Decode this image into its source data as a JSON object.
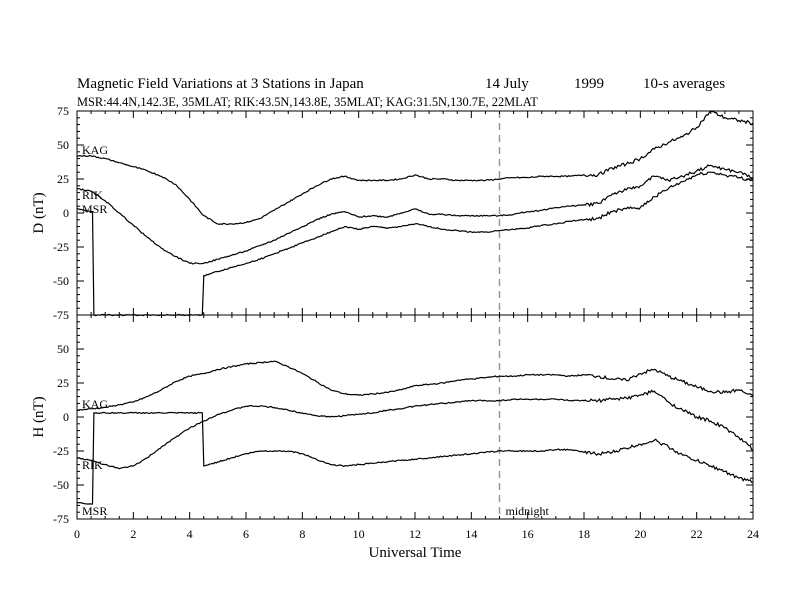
{
  "title": {
    "text": "Magnetic Field Variations at 3 Stations in Japan",
    "date_day": "14 July",
    "date_year": "1999",
    "averaging": "10-s averages"
  },
  "subtitle": "MSR:44.4N,142.3E, 35MLAT;  RIK:43.5N,143.8E, 35MLAT;  KAG:31.5N,130.7E, 22MLAT",
  "chart_data": [
    {
      "type": "line",
      "panel": "D",
      "ylabel": "D (nT)",
      "ylim": [
        -75,
        75
      ],
      "yticks": [
        -75,
        -50,
        -25,
        0,
        25,
        50,
        75
      ],
      "xlim": [
        0,
        24
      ],
      "xticks": [
        0,
        2,
        4,
        6,
        8,
        10,
        12,
        14,
        16,
        18,
        20,
        22,
        24
      ],
      "grid": false,
      "series": [
        {
          "name": "KAG",
          "x": [
            0,
            0.5,
            1,
            1.5,
            2,
            2.5,
            3,
            3.5,
            4,
            4.5,
            5,
            5.5,
            6,
            6.5,
            7,
            7.5,
            8,
            8.5,
            9,
            9.5,
            10,
            10.5,
            11,
            11.5,
            12,
            12.5,
            13,
            13.5,
            14,
            14.5,
            15,
            15.5,
            16,
            16.5,
            17,
            17.5,
            18,
            18.5,
            19,
            19.5,
            20,
            20.5,
            21,
            21.5,
            22,
            22.5,
            23,
            23.5,
            24
          ],
          "y": [
            42,
            42,
            40,
            37,
            34,
            31,
            27,
            21,
            10,
            -2,
            -8,
            -8,
            -7,
            -4,
            2,
            8,
            14,
            20,
            25,
            27,
            24,
            24,
            24,
            25,
            28,
            25,
            25,
            24,
            24,
            24,
            25,
            26,
            26,
            27,
            27,
            27,
            28,
            28,
            33,
            36,
            40,
            47,
            52,
            56,
            63,
            75,
            70,
            68,
            66
          ]
        },
        {
          "name": "RIK",
          "x": [
            0,
            0.5,
            1,
            1.5,
            2,
            2.5,
            3,
            3.5,
            4,
            4.5,
            5,
            5.5,
            6,
            6.5,
            7,
            7.5,
            8,
            8.5,
            9,
            9.5,
            10,
            10.5,
            11,
            11.5,
            12,
            12.5,
            13,
            13.5,
            14,
            14.5,
            15,
            15.5,
            16,
            16.5,
            17,
            17.5,
            18,
            18.5,
            19,
            19.5,
            20,
            20.5,
            21,
            21.5,
            22,
            22.5,
            23,
            23.5,
            24
          ],
          "y": [
            18,
            16,
            9,
            0,
            -9,
            -18,
            -26,
            -32,
            -37,
            -37,
            -34,
            -31,
            -28,
            -24,
            -20,
            -15,
            -10,
            -5,
            -1,
            1,
            -3,
            -2,
            -3,
            0,
            3,
            -1,
            -1,
            -2,
            -2,
            -2,
            -2,
            -1,
            1,
            2,
            4,
            5,
            6,
            7,
            14,
            17,
            20,
            27,
            24,
            27,
            31,
            35,
            32,
            30,
            26
          ]
        },
        {
          "name": "MSR",
          "x": [
            0,
            0.5,
            0.55,
            0.6,
            1,
            1.5,
            2,
            2.5,
            3,
            3.5,
            4,
            4.45,
            4.5,
            5,
            5.5,
            6,
            6.5,
            7,
            7.5,
            8,
            8.5,
            9,
            9.5,
            10,
            10.5,
            11,
            11.5,
            12,
            12.5,
            13,
            13.5,
            14,
            14.5,
            15,
            15.5,
            16,
            16.5,
            17,
            17.5,
            18,
            18.5,
            19,
            19.5,
            20,
            20.5,
            21,
            21.5,
            22,
            22.5,
            23,
            23.5,
            24
          ],
          "y": [
            3,
            1,
            1,
            -75,
            -75,
            -75,
            -75,
            -75,
            -75,
            -75,
            -75,
            -75,
            -46,
            -43,
            -40,
            -37,
            -34,
            -30,
            -26,
            -22,
            -18,
            -14,
            -10,
            -12,
            -10,
            -11,
            -10,
            -8,
            -10,
            -12,
            -13,
            -14,
            -14,
            -13,
            -12,
            -11,
            -9,
            -8,
            -6,
            -5,
            -4,
            1,
            3,
            4,
            12,
            18,
            23,
            28,
            30,
            28,
            26,
            24
          ]
        }
      ]
    },
    {
      "type": "line",
      "panel": "H",
      "ylabel": "H (nT)",
      "ylim": [
        -75,
        75
      ],
      "yticks": [
        -75,
        -50,
        -25,
        0,
        25,
        50
      ],
      "xlim": [
        0,
        24
      ],
      "xticks": [
        0,
        2,
        4,
        6,
        8,
        10,
        12,
        14,
        16,
        18,
        20,
        22,
        24
      ],
      "xlabel": "Universal Time",
      "grid": false,
      "series": [
        {
          "name": "KAG",
          "x": [
            0,
            0.5,
            1,
            1.5,
            2,
            2.5,
            3,
            3.5,
            4,
            4.5,
            5,
            5.5,
            6,
            6.5,
            7,
            7.5,
            8,
            8.5,
            9,
            9.5,
            10,
            10.5,
            11,
            11.5,
            12,
            12.5,
            13,
            13.5,
            14,
            14.5,
            15,
            15.5,
            16,
            16.5,
            17,
            17.5,
            18,
            18.5,
            19,
            19.5,
            20,
            20.5,
            21,
            21.5,
            22,
            22.5,
            23,
            23.5,
            24
          ],
          "y": [
            5,
            6,
            7,
            9,
            11,
            15,
            20,
            26,
            30,
            32,
            35,
            37,
            39,
            40,
            41,
            37,
            32,
            26,
            20,
            17,
            16,
            17,
            18,
            20,
            23,
            24,
            25,
            27,
            28,
            29,
            30,
            30,
            31,
            31,
            31,
            30,
            31,
            30,
            28,
            27,
            32,
            35,
            30,
            26,
            22,
            19,
            18,
            20,
            15
          ]
        },
        {
          "name": "RIK",
          "x": [
            0,
            0.5,
            1,
            1.5,
            2,
            2.5,
            3,
            3.5,
            4,
            4.5,
            5,
            5.5,
            6,
            6.5,
            7,
            7.5,
            8,
            8.5,
            9,
            9.5,
            10,
            10.5,
            11,
            11.5,
            12,
            12.5,
            13,
            13.5,
            14,
            14.5,
            15,
            15.5,
            16,
            16.5,
            17,
            17.5,
            18,
            18.5,
            19,
            19.5,
            20,
            20.5,
            21,
            21.5,
            22,
            22.5,
            23,
            23.5,
            24
          ],
          "y": [
            -30,
            -32,
            -35,
            -38,
            -36,
            -30,
            -22,
            -15,
            -8,
            -3,
            2,
            5,
            8,
            8,
            7,
            5,
            3,
            1,
            0,
            1,
            2,
            3,
            5,
            6,
            8,
            9,
            10,
            11,
            12,
            12,
            12,
            13,
            13,
            13,
            13,
            12,
            12,
            12,
            13,
            14,
            16,
            19,
            11,
            5,
            0,
            -3,
            -8,
            -15,
            -24
          ]
        },
        {
          "name": "MSR",
          "x": [
            0,
            0.5,
            0.55,
            0.6,
            1,
            1.5,
            2,
            2.5,
            3,
            3.5,
            4,
            4.45,
            4.5,
            5,
            5.5,
            6,
            6.5,
            7,
            7.5,
            8,
            8.5,
            9,
            9.5,
            10,
            10.5,
            11,
            11.5,
            12,
            12.5,
            13,
            13.5,
            14,
            14.5,
            15,
            15.5,
            16,
            16.5,
            17,
            17.5,
            18,
            18.5,
            19,
            19.5,
            20,
            20.5,
            21,
            21.5,
            22,
            22.5,
            23,
            23.5,
            24
          ],
          "y": [
            -63,
            -64,
            -64,
            3,
            3,
            3,
            3,
            3,
            3,
            3,
            3,
            3,
            -36,
            -33,
            -30,
            -27,
            -25,
            -25,
            -25,
            -27,
            -31,
            -35,
            -36,
            -35,
            -34,
            -33,
            -32,
            -31,
            -30,
            -29,
            -28,
            -27,
            -26,
            -25,
            -25,
            -25,
            -25,
            -24,
            -24,
            -26,
            -27,
            -26,
            -23,
            -20,
            -17,
            -22,
            -28,
            -32,
            -36,
            -40,
            -45,
            -48
          ]
        }
      ]
    }
  ],
  "midnight_label": "midnight",
  "midnight_x": 15,
  "panel_labels": {
    "D": {
      "KAG": "KAG",
      "RIK": "RIK",
      "MSR": "MSR"
    },
    "H": {
      "KAG": "KAG",
      "RIK": "RIK",
      "MSR": "MSR"
    }
  },
  "colors": {
    "line": "#000000",
    "midnight": "#999999",
    "background": "#ffffff"
  }
}
